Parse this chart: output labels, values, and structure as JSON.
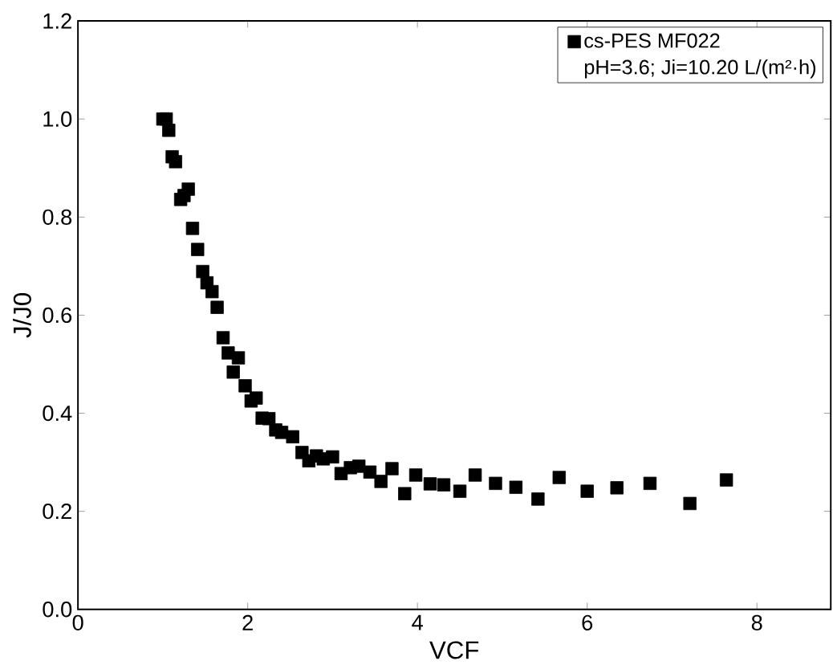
{
  "chart_data": {
    "type": "scatter",
    "xlabel": "VCF",
    "ylabel": "J/J0",
    "annotations": [
      "pH=3.6; Ji=10.20 L/(m²·h)"
    ],
    "series": [
      {
        "name": "cs-PES MF022",
        "color": "#000000",
        "x": [
          1.0,
          1.04,
          1.07,
          1.11,
          1.15,
          1.21,
          1.25,
          1.3,
          1.35,
          1.41,
          1.47,
          1.52,
          1.58,
          1.64,
          1.71,
          1.77,
          1.83,
          1.89,
          1.97,
          2.04,
          2.1,
          2.17,
          2.25,
          2.33,
          2.4,
          2.53,
          2.64,
          2.72,
          2.81,
          2.89,
          3.0,
          3.1,
          3.21,
          3.31,
          3.44,
          3.57,
          3.7,
          3.85,
          3.98,
          4.15,
          4.31,
          4.5,
          4.68,
          4.92,
          5.16,
          5.42,
          5.67,
          6.0,
          6.35,
          6.74,
          7.21,
          7.64
        ],
        "values": [
          1.0,
          1.0,
          0.977,
          0.923,
          0.913,
          0.836,
          0.844,
          0.857,
          0.777,
          0.734,
          0.689,
          0.666,
          0.648,
          0.616,
          0.554,
          0.523,
          0.484,
          0.513,
          0.456,
          0.425,
          0.431,
          0.39,
          0.389,
          0.366,
          0.361,
          0.352,
          0.32,
          0.303,
          0.313,
          0.307,
          0.311,
          0.277,
          0.289,
          0.292,
          0.28,
          0.261,
          0.287,
          0.236,
          0.274,
          0.256,
          0.254,
          0.241,
          0.274,
          0.257,
          0.249,
          0.225,
          0.269,
          0.241,
          0.248,
          0.257,
          0.216,
          0.264
        ]
      }
    ],
    "xlim": [
      0,
      8.87
    ],
    "ylim": [
      0,
      1.2
    ],
    "xticks": [
      0,
      2,
      4,
      6,
      8
    ],
    "yticks": [
      {
        "value": 0,
        "label": "0.0"
      },
      {
        "value": 0.2,
        "label": "0.2"
      },
      {
        "value": 0.4,
        "label": "0.4"
      },
      {
        "value": 0.6,
        "label": "0.6"
      },
      {
        "value": 0.8,
        "label": "0.8"
      },
      {
        "value": 1.0,
        "label": "1.0"
      },
      {
        "value": 1.2,
        "label": "1.2"
      }
    ],
    "marker": "square",
    "legend": "top right",
    "grid": false
  }
}
